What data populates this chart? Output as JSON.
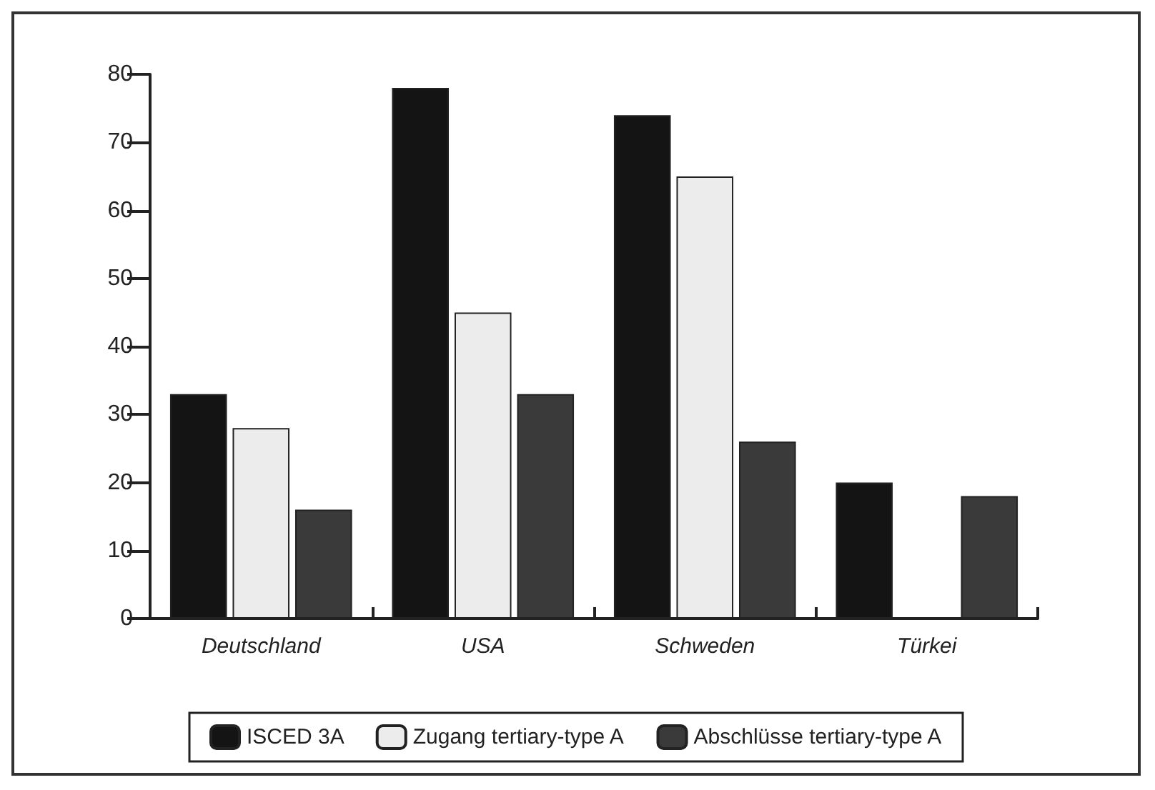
{
  "chart_data": {
    "type": "bar",
    "categories": [
      "Deutschland",
      "USA",
      "Schweden",
      "Türkei"
    ],
    "series": [
      {
        "name": "ISCED 3A",
        "color": "#141414",
        "values": [
          33,
          78,
          74,
          20
        ]
      },
      {
        "name": "Zugang tertiary-type A",
        "color": "#ececec",
        "values": [
          28,
          45,
          65,
          null
        ]
      },
      {
        "name": "Abschlüsse tertiary-type A",
        "color": "#3a3a3a",
        "values": [
          16,
          33,
          26,
          18
        ]
      }
    ],
    "ylim": [
      0,
      80
    ],
    "yticks": [
      0,
      10,
      20,
      30,
      40,
      50,
      60,
      70,
      80
    ],
    "grid": false,
    "legend": "bottom"
  }
}
